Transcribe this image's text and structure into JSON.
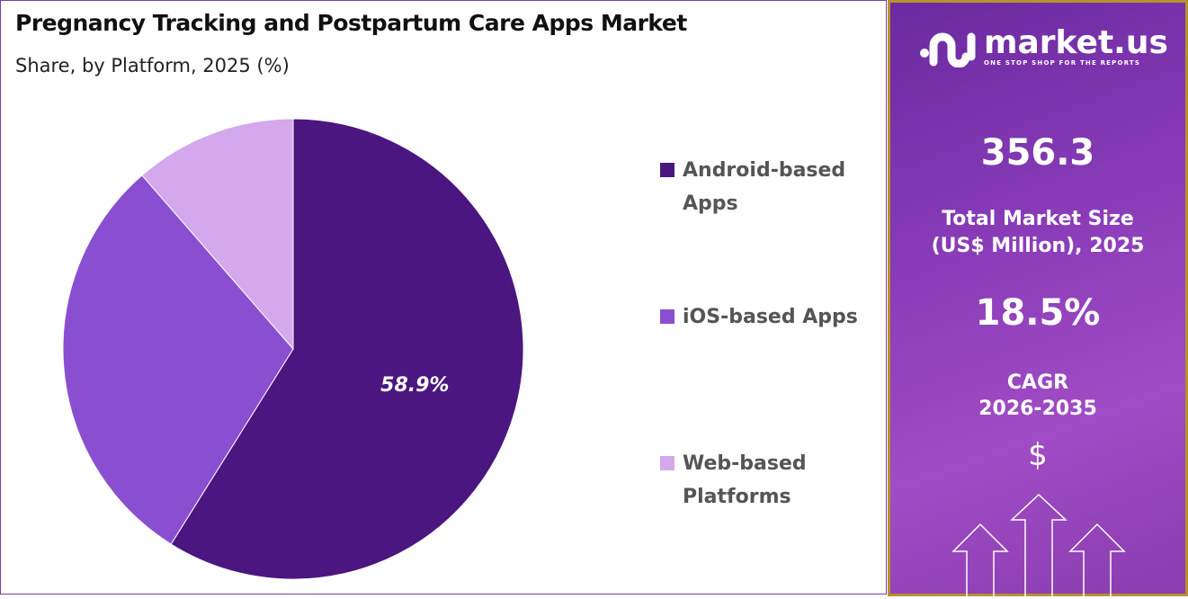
{
  "title": "Pregnancy Tracking and Postpartum Care Apps Market",
  "subtitle": "Share, by Platform, 2025 (%)",
  "chart_data": {
    "type": "pie",
    "title": "Pregnancy Tracking and Postpartum Care Apps Market",
    "subtitle": "Share, by Platform, 2025 (%)",
    "categories": [
      "Android-based Apps",
      "iOS-based Apps",
      "Web-based Platforms"
    ],
    "values": [
      58.9,
      29.7,
      11.4
    ],
    "colors": [
      "#4b1680",
      "#8a4fd0",
      "#d3a8ec"
    ],
    "data_labels": [
      "58.9%",
      "",
      ""
    ],
    "legend_position": "right"
  },
  "legend": [
    "Android-based Apps",
    "iOS-based Apps",
    "Web-based Platforms"
  ],
  "panel": {
    "logo_text": "market.us",
    "logo_tagline": "ONE STOP SHOP FOR THE REPORTS",
    "market_size": "356.3",
    "market_size_label_1": "Total Market Size",
    "market_size_label_2": "(US$ Million), 2025",
    "cagr": "18.5%",
    "cagr_label_1": "CAGR",
    "cagr_label_2": "2026-2035",
    "dollar": "$"
  }
}
